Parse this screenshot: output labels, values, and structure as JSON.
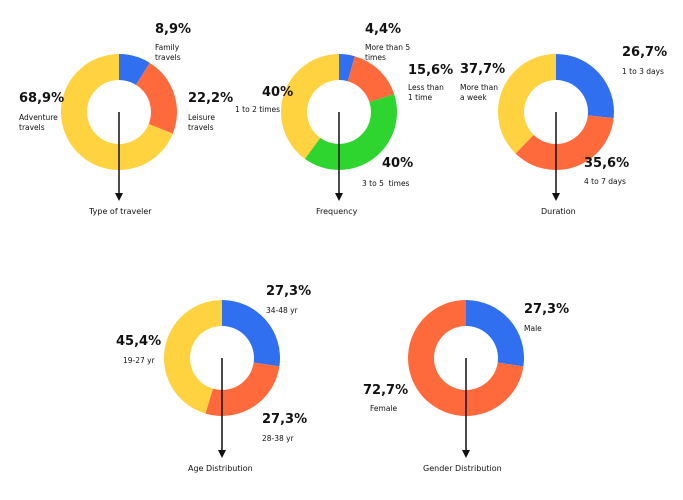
{
  "colors": {
    "blue": "#2f6ff0",
    "orange": "#ff6a3d",
    "yellow": "#ffd23f",
    "green": "#2fd52f"
  },
  "chart_data": [
    {
      "type": "pie",
      "subtype": "donut",
      "caption": "Type of traveler",
      "slices": [
        {
          "pct": "8,9%",
          "value": 8.9,
          "label": "Family travels",
          "color": "#2f6ff0"
        },
        {
          "pct": "22,2%",
          "value": 22.2,
          "label": "Leisure travels",
          "color": "#ff6a3d"
        },
        {
          "pct": "68,9%",
          "value": 68.9,
          "label": "Adventure travels",
          "color": "#ffd23f"
        }
      ]
    },
    {
      "type": "pie",
      "subtype": "donut",
      "caption": "Frequency",
      "slices": [
        {
          "pct": "4,4%",
          "value": 4.4,
          "label": "More than 5 times",
          "color": "#2f6ff0"
        },
        {
          "pct": "15,6%",
          "value": 15.6,
          "label": "Less than 1 time",
          "color": "#ff6a3d"
        },
        {
          "pct": "40%",
          "value": 40,
          "label": "3 to 5  times",
          "color": "#2fd52f"
        },
        {
          "pct": "40%",
          "value": 40,
          "label": "1 to 2 times",
          "color": "#ffd23f"
        }
      ]
    },
    {
      "type": "pie",
      "subtype": "donut",
      "caption": "Duration",
      "slices": [
        {
          "pct": "26,7%",
          "value": 26.7,
          "label": "1 to 3 days",
          "color": "#2f6ff0"
        },
        {
          "pct": "35,6%",
          "value": 35.6,
          "label": "4 to 7 days",
          "color": "#ff6a3d"
        },
        {
          "pct": "37,7%",
          "value": 37.7,
          "label": "More than a week",
          "color": "#ffd23f"
        }
      ]
    },
    {
      "type": "pie",
      "subtype": "donut",
      "caption": "Age Distribution",
      "slices": [
        {
          "pct": "27,3%",
          "value": 27.3,
          "label": "34-48 yr",
          "color": "#2f6ff0"
        },
        {
          "pct": "27,3%",
          "value": 27.3,
          "label": "28-38 yr",
          "color": "#ff6a3d"
        },
        {
          "pct": "45,4%",
          "value": 45.4,
          "label": "19-27 yr",
          "color": "#ffd23f"
        }
      ]
    },
    {
      "type": "pie",
      "subtype": "donut",
      "caption": "Gender Distribution",
      "slices": [
        {
          "pct": "27,3%",
          "value": 27.3,
          "label": "Male",
          "color": "#2f6ff0"
        },
        {
          "pct": "72,7%",
          "value": 72.7,
          "label": "Female",
          "color": "#ff6a3d"
        }
      ]
    }
  ]
}
